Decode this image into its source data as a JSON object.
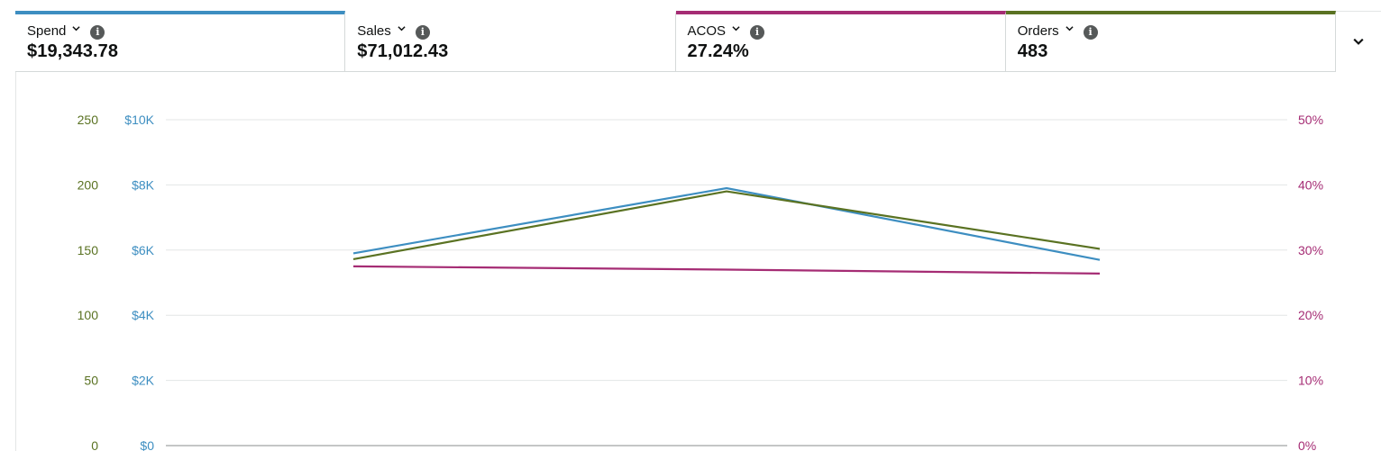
{
  "metrics": [
    {
      "name": "Spend",
      "value": "$19,343.78",
      "color": "#3d8ec1",
      "selected": true
    },
    {
      "name": "Sales",
      "value": "$71,012.43",
      "color": "",
      "selected": false
    },
    {
      "name": "ACOS",
      "value": "27.24%",
      "color": "#a52c74",
      "selected": true
    },
    {
      "name": "Orders",
      "value": "483",
      "color": "#5a7222",
      "selected": true
    }
  ],
  "icons": {
    "dropdown": "chevron-down-icon",
    "info": "info-icon",
    "expand": "chevron-down-icon"
  },
  "chart_data": {
    "type": "line",
    "x": [
      "",
      "",
      ""
    ],
    "grid": true,
    "axes": {
      "left_orders": {
        "ticks": [
          "0",
          "50",
          "100",
          "150",
          "200",
          "250"
        ],
        "ylim": [
          0,
          250
        ],
        "color": "#5a7222"
      },
      "left_spend": {
        "ticks": [
          "$0",
          "$2K",
          "$4K",
          "$6K",
          "$8K",
          "$10K"
        ],
        "ylim": [
          0,
          10000
        ],
        "color": "#3d8ec1"
      },
      "right_acos": {
        "ticks": [
          "0%",
          "10%",
          "20%",
          "30%",
          "40%",
          "50%"
        ],
        "ylim": [
          0,
          50
        ],
        "color": "#a52c74"
      }
    },
    "series": [
      {
        "name": "Spend",
        "axis": "left_spend",
        "color": "#3d8ec1",
        "values": [
          5900,
          7900,
          5700
        ]
      },
      {
        "name": "Orders",
        "axis": "left_orders",
        "color": "#5a7222",
        "values": [
          143,
          195,
          151
        ]
      },
      {
        "name": "ACOS",
        "axis": "right_acos",
        "color": "#a52c74",
        "values": [
          27.5,
          27.0,
          26.4
        ]
      }
    ]
  }
}
